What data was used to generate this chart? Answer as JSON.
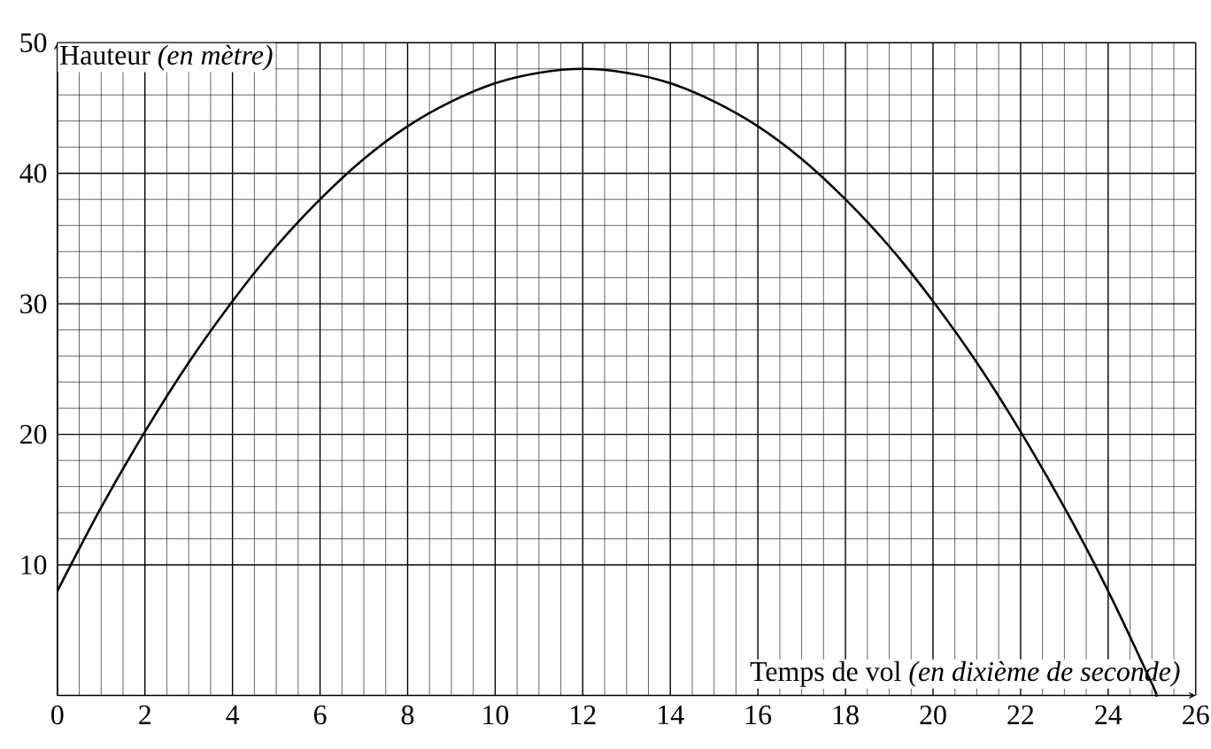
{
  "chart_data": {
    "type": "line",
    "xlabel": "Temps de vol *(en dixième de seconde)*",
    "ylabel": "Hauteur *(en mètre)*",
    "x": [
      0,
      1,
      2,
      3,
      4,
      5,
      6,
      7,
      8,
      9,
      10,
      11,
      12,
      13,
      14,
      15,
      16,
      17,
      18,
      19,
      20,
      21,
      22,
      23,
      24,
      25,
      25.1
    ],
    "series": [
      {
        "color": "#000000",
        "values": [
          8,
          14.4,
          20.2,
          25.5,
          30.2,
          34.4,
          38,
          41.1,
          43.6,
          45.5,
          46.9,
          47.7,
          48,
          47.7,
          46.9,
          45.5,
          43.6,
          41.1,
          38,
          34.4,
          30.2,
          25.5,
          20.2,
          14.4,
          8,
          0.9,
          0
        ]
      }
    ],
    "xlim": [
      0,
      26
    ],
    "ylim": [
      0,
      50
    ],
    "xticks": [
      0,
      2,
      4,
      6,
      8,
      10,
      12,
      14,
      16,
      18,
      20,
      22,
      24,
      26
    ],
    "yticks": [
      10,
      20,
      30,
      40,
      50
    ],
    "grid": true
  }
}
